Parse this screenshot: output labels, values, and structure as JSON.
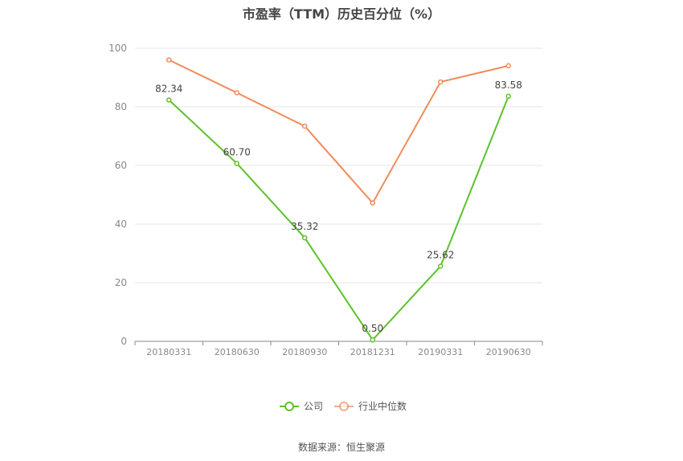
{
  "title": "市盈率（TTM）历史百分位（%）",
  "source": "数据来源：恒生聚源",
  "chart_data": {
    "type": "line",
    "categories": [
      "20180331",
      "20180630",
      "20180930",
      "20181231",
      "20190331",
      "20190630"
    ],
    "ylim": [
      0,
      100
    ],
    "yticks": [
      0,
      20,
      40,
      60,
      80,
      100
    ],
    "grid": true,
    "legend_position": "bottom",
    "series": [
      {
        "name": "公司",
        "color": "#5cc22a",
        "values": [
          82.34,
          60.7,
          35.32,
          0.5,
          25.62,
          83.58
        ],
        "labels": [
          "82.34",
          "60.70",
          "35.32",
          "0.50",
          "25.62",
          "83.58"
        ]
      },
      {
        "name": "行业中位数",
        "color": "#f08c5a",
        "values": [
          96.0,
          84.8,
          73.4,
          47.2,
          88.5,
          94.0
        ]
      }
    ]
  }
}
